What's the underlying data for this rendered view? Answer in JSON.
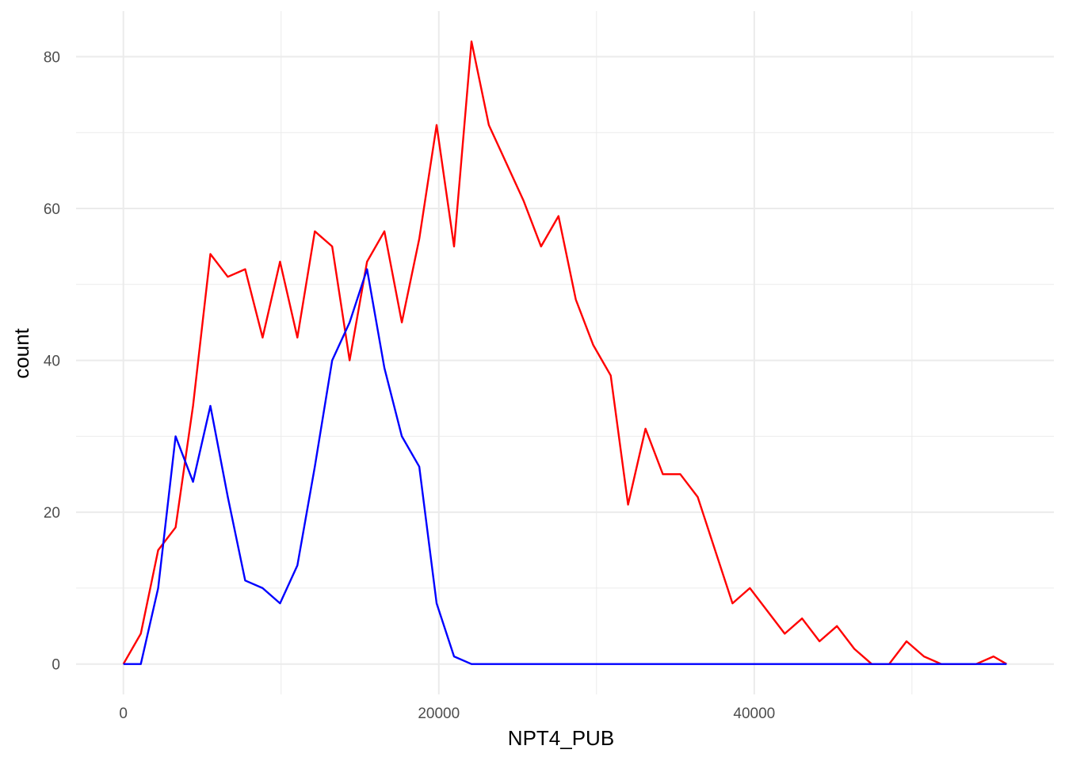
{
  "chart_data": {
    "type": "line",
    "title": "",
    "xlabel": "NPT4_PUB",
    "ylabel": "count",
    "xlim": [
      -3000,
      59000
    ],
    "ylim": [
      -4,
      86
    ],
    "x_ticks": [
      0,
      20000,
      40000
    ],
    "x_tick_labels": [
      "0",
      "20000",
      "40000"
    ],
    "y_ticks": [
      0,
      20,
      40,
      60,
      80
    ],
    "y_tick_labels": [
      "0",
      "20",
      "40",
      "60",
      "80"
    ],
    "x_minor_ticks": [
      10000,
      30000,
      50000
    ],
    "y_minor_ticks": [
      10,
      30,
      50,
      70
    ],
    "grid": true,
    "legend": "none",
    "series": [
      {
        "color": "#ff0000",
        "x": [
          0,
          1103,
          2207,
          3310,
          4414,
          5517,
          6621,
          7724,
          8828,
          9931,
          11034,
          12138,
          13241,
          14345,
          15448,
          16552,
          17655,
          18759,
          19862,
          20966,
          22069,
          23172,
          24276,
          25379,
          26483,
          27586,
          28690,
          29793,
          30897,
          32000,
          33103,
          34207,
          35310,
          36414,
          37517,
          38621,
          39724,
          40828,
          41931,
          43034,
          44138,
          45241,
          46345,
          47448,
          48552,
          49655,
          50759,
          51862,
          52966,
          54069,
          55172,
          56000
        ],
        "values": [
          0,
          4,
          15,
          18,
          34,
          54,
          51,
          52,
          43,
          53,
          43,
          57,
          55,
          40,
          53,
          57,
          45,
          56,
          71,
          55,
          82,
          71,
          66,
          61,
          55,
          59,
          48,
          42,
          38,
          21,
          31,
          25,
          25,
          22,
          15,
          8,
          10,
          7,
          4,
          6,
          3,
          5,
          2,
          0,
          0,
          3,
          1,
          0,
          0,
          0,
          1,
          0
        ]
      },
      {
        "color": "#0000ff",
        "x": [
          0,
          1103,
          2207,
          3310,
          4414,
          5517,
          6621,
          7724,
          8828,
          9931,
          11034,
          12138,
          13241,
          14345,
          15448,
          16552,
          17655,
          18759,
          19862,
          20966,
          22069,
          23172,
          24276,
          25379,
          26483,
          27586,
          28690,
          29793,
          30897,
          32000,
          33103,
          34207,
          35310,
          36414,
          37517,
          38621,
          39724,
          40828,
          41931,
          43034,
          44138,
          45241,
          46345,
          47448,
          48552,
          49655,
          50759,
          51862,
          52966,
          54069,
          55172,
          56000
        ],
        "values": [
          0,
          0,
          10,
          30,
          24,
          34,
          22,
          11,
          10,
          8,
          13,
          26,
          40,
          45,
          52,
          39,
          30,
          26,
          8,
          1,
          0,
          0,
          0,
          0,
          0,
          0,
          0,
          0,
          0,
          0,
          0,
          0,
          0,
          0,
          0,
          0,
          0,
          0,
          0,
          0,
          0,
          0,
          0,
          0,
          0,
          0,
          0,
          0,
          0,
          0,
          0,
          0
        ]
      }
    ]
  }
}
